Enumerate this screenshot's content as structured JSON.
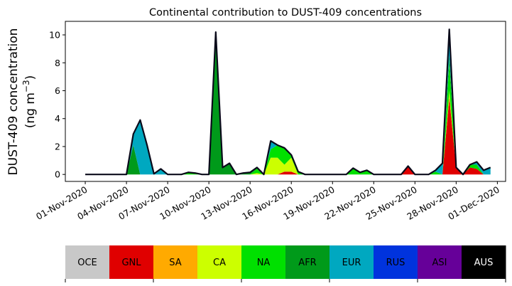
{
  "chart_data": {
    "type": "area",
    "title": "Continental contribution to DUST-409 concentrations",
    "ylabel_line1": "DUST-409 concentration",
    "ylabel_line2": "(ng m",
    "ylabel_sup": "−3",
    "ylabel_close": ")",
    "xlabel": "",
    "x_unit": "days since 01-Nov-2020",
    "x_step": 0.5,
    "xlim": [
      -1.45,
      30.6
    ],
    "ylim": [
      -0.5,
      10.97
    ],
    "yticks": [
      0,
      2,
      4,
      6,
      8,
      10
    ],
    "xticks": [
      0,
      3,
      6,
      9,
      12,
      15,
      18,
      21,
      24,
      27,
      30
    ],
    "xtick_labels": [
      "01-Nov-2020",
      "04-Nov-2020",
      "07-Nov-2020",
      "10-Nov-2020",
      "13-Nov-2020",
      "16-Nov-2020",
      "19-Nov-2020",
      "22-Nov-2020",
      "25-Nov-2020",
      "28-Nov-2020",
      "01-Dec-2020"
    ],
    "series": [
      {
        "name": "OCE",
        "color": "#c8c8c8",
        "values": [
          0,
          0,
          0,
          0,
          0,
          0,
          0,
          0,
          0,
          0,
          0,
          0,
          0,
          0,
          0,
          0,
          0,
          0,
          0,
          0,
          0,
          0,
          0,
          0,
          0,
          0,
          0,
          0,
          0,
          0,
          0,
          0,
          0,
          0,
          0,
          0,
          0,
          0,
          0,
          0,
          0,
          0,
          0,
          0,
          0,
          0,
          0,
          0,
          0,
          0,
          0,
          0,
          0,
          0,
          0,
          0,
          0,
          0,
          0,
          0
        ]
      },
      {
        "name": "GNL",
        "color": "#e00000",
        "values": [
          0,
          0,
          0,
          0,
          0,
          0,
          0,
          0,
          0,
          0,
          0,
          0,
          0,
          0,
          0,
          0,
          0,
          0,
          0,
          0,
          0,
          0,
          0,
          0,
          0,
          0,
          0,
          0,
          0,
          0.2,
          0.2,
          0,
          0,
          0,
          0,
          0,
          0,
          0,
          0,
          0,
          0,
          0,
          0,
          0,
          0,
          0,
          0,
          0.6,
          0,
          0,
          0,
          0,
          0,
          5.5,
          0.5,
          0,
          0.5,
          0.4,
          0,
          0
        ]
      },
      {
        "name": "SA",
        "color": "#ffaa00",
        "values": [
          0,
          0,
          0,
          0,
          0,
          0,
          0,
          0,
          0,
          0,
          0,
          0,
          0,
          0,
          0,
          0,
          0,
          0,
          0,
          0,
          0,
          0,
          0,
          0,
          0,
          0,
          0,
          0,
          0,
          0,
          0,
          0,
          0,
          0,
          0,
          0,
          0,
          0,
          0,
          0,
          0,
          0,
          0,
          0,
          0,
          0,
          0,
          0,
          0,
          0,
          0,
          0,
          0,
          0,
          0,
          0,
          0,
          0,
          0,
          0
        ]
      },
      {
        "name": "CA",
        "color": "#ccff00",
        "values": [
          0,
          0,
          0,
          0,
          0,
          0,
          0,
          0,
          0,
          0,
          0,
          0,
          0,
          0,
          0,
          0,
          0,
          0,
          0,
          0,
          0,
          0,
          0,
          0,
          0,
          0.1,
          0,
          1.2,
          1.2,
          0.5,
          1.0,
          0,
          0,
          0,
          0,
          0,
          0,
          0,
          0,
          0,
          0,
          0,
          0,
          0,
          0,
          0,
          0,
          0,
          0,
          0,
          0,
          0,
          0,
          0.5,
          0,
          0,
          0,
          0,
          0,
          0
        ]
      },
      {
        "name": "NA",
        "color": "#00e000",
        "values": [
          0,
          0,
          0,
          0,
          0,
          0,
          0,
          0,
          0,
          0,
          0,
          0,
          0,
          0,
          0,
          0.15,
          0.1,
          0,
          0,
          0,
          0,
          0,
          0,
          0,
          0,
          0.3,
          0,
          0.6,
          0.9,
          1.2,
          0.2,
          0.2,
          0,
          0,
          0,
          0,
          0,
          0,
          0,
          0.45,
          0.15,
          0.3,
          0,
          0,
          0,
          0,
          0,
          0,
          0,
          0,
          0,
          0.2,
          0,
          2.0,
          0,
          0,
          0.2,
          0.3,
          0,
          0
        ]
      },
      {
        "name": "AFR",
        "color": "#009a1a",
        "values": [
          0,
          0,
          0,
          0,
          0,
          0,
          0,
          2.1,
          0,
          0,
          0,
          0,
          0,
          0,
          0,
          0,
          0,
          0,
          0,
          10.2,
          0.5,
          0.8,
          0,
          0.1,
          0.15,
          0.1,
          0,
          0,
          0,
          0,
          0,
          0,
          0,
          0,
          0,
          0,
          0,
          0,
          0,
          0,
          0,
          0,
          0,
          0,
          0,
          0,
          0,
          0,
          0,
          0,
          0,
          0,
          0,
          0.5,
          0,
          0,
          0,
          0,
          0,
          0
        ]
      },
      {
        "name": "EUR",
        "color": "#00a8c0",
        "values": [
          0,
          0,
          0,
          0,
          0,
          0,
          0,
          0.8,
          3.9,
          2.1,
          0.05,
          0.4,
          0,
          0,
          0,
          0,
          0,
          0,
          0,
          0,
          0,
          0,
          0,
          0,
          0,
          0,
          0,
          0.6,
          0,
          0,
          0,
          0,
          0,
          0,
          0,
          0,
          0,
          0,
          0,
          0,
          0,
          0,
          0,
          0,
          0,
          0,
          0,
          0,
          0,
          0,
          0,
          0.1,
          0.8,
          1.9,
          0,
          0,
          0,
          0.2,
          0.3,
          0.5
        ]
      },
      {
        "name": "RUS",
        "color": "#0033dd",
        "values": [
          0,
          0,
          0,
          0,
          0,
          0,
          0,
          0,
          0,
          0,
          0,
          0,
          0,
          0,
          0,
          0,
          0,
          0,
          0,
          0,
          0,
          0,
          0,
          0,
          0,
          0,
          0,
          0,
          0,
          0,
          0,
          0,
          0,
          0,
          0,
          0,
          0,
          0,
          0,
          0,
          0,
          0,
          0,
          0,
          0,
          0,
          0,
          0,
          0,
          0,
          0,
          0,
          0,
          0,
          0,
          0,
          0,
          0,
          0,
          0
        ]
      },
      {
        "name": "ASI",
        "color": "#660099",
        "values": [
          0,
          0,
          0,
          0,
          0,
          0,
          0,
          0,
          0,
          0,
          0,
          0,
          0,
          0,
          0,
          0,
          0,
          0,
          0,
          0,
          0,
          0,
          0,
          0,
          0,
          0,
          0,
          0,
          0,
          0,
          0,
          0,
          0,
          0,
          0,
          0,
          0,
          0,
          0,
          0,
          0,
          0,
          0,
          0,
          0,
          0,
          0,
          0,
          0,
          0,
          0,
          0,
          0,
          0,
          0,
          0,
          0,
          0,
          0,
          0
        ]
      },
      {
        "name": "AUS",
        "color": "#000000",
        "values": [
          0,
          0,
          0,
          0,
          0,
          0,
          0,
          0,
          0,
          0,
          0,
          0,
          0,
          0,
          0,
          0,
          0,
          0,
          0,
          0,
          0,
          0,
          0,
          0,
          0,
          0,
          0,
          0,
          0,
          0,
          0,
          0,
          0,
          0,
          0,
          0,
          0,
          0,
          0,
          0,
          0,
          0,
          0,
          0,
          0,
          0,
          0,
          0,
          0,
          0,
          0,
          0,
          0,
          0,
          0,
          0,
          0,
          0,
          0,
          0
        ]
      }
    ],
    "legend": {
      "placement": "bottom",
      "style": "colorbar"
    }
  }
}
